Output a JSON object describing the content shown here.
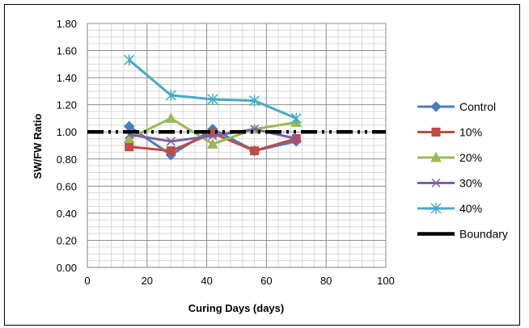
{
  "chart_data": {
    "type": "line",
    "title": "",
    "xlabel": "Curing Days (days)",
    "ylabel": "SW/FW Ratio",
    "xlim": [
      0,
      100
    ],
    "ylim": [
      0,
      1.8
    ],
    "x_ticks": [
      "0",
      "20",
      "40",
      "60",
      "80",
      "100"
    ],
    "y_ticks": [
      "0.00",
      "0.20",
      "0.40",
      "0.60",
      "0.80",
      "1.00",
      "1.20",
      "1.40",
      "1.60",
      "1.80"
    ],
    "grid": true,
    "legend_position": "right",
    "series": [
      {
        "name": "Control",
        "color": "#4a7ebb",
        "marker": "diamond",
        "x": [
          14,
          28,
          42,
          56,
          70
        ],
        "y": [
          1.04,
          0.83,
          1.02,
          0.86,
          0.93
        ]
      },
      {
        "name": "10%",
        "color": "#be4b48",
        "marker": "square",
        "x": [
          14,
          28,
          42,
          56,
          70
        ],
        "y": [
          0.89,
          0.86,
          0.99,
          0.86,
          0.95
        ]
      },
      {
        "name": "20%",
        "color": "#98b954",
        "marker": "triangle",
        "x": [
          14,
          28,
          42,
          56,
          70
        ],
        "y": [
          0.95,
          1.1,
          0.91,
          1.02,
          1.07
        ]
      },
      {
        "name": "30%",
        "color": "#7d60a0",
        "marker": "x",
        "x": [
          14,
          28,
          42,
          56,
          70
        ],
        "y": [
          0.98,
          0.93,
          0.97,
          1.02,
          0.95
        ]
      },
      {
        "name": "40%",
        "color": "#46aac5",
        "marker": "star",
        "x": [
          14,
          28,
          42,
          56,
          70
        ],
        "y": [
          1.53,
          1.27,
          1.24,
          1.23,
          1.1
        ]
      },
      {
        "name": "Boundary",
        "color": "#000000",
        "marker": "none",
        "style": "dashed",
        "x": [
          0,
          100
        ],
        "y": [
          1.0,
          1.0
        ]
      }
    ]
  }
}
